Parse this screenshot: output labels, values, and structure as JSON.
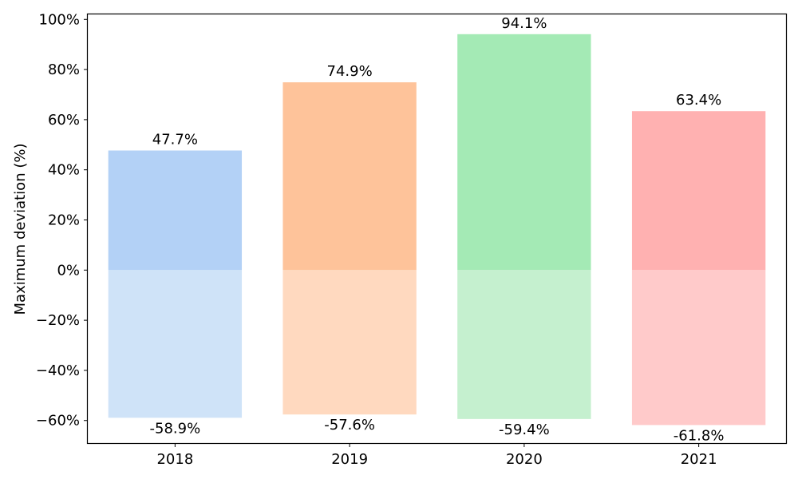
{
  "chart_data": {
    "type": "bar",
    "title": "",
    "xlabel": "",
    "ylabel": "Maximum deviation (%)",
    "categories": [
      "2018",
      "2019",
      "2020",
      "2021"
    ],
    "series": [
      {
        "values": [
          47.7,
          74.9,
          94.1,
          63.4
        ]
      },
      {
        "values": [
          -58.9,
          -57.6,
          -59.4,
          -61.8
        ]
      }
    ],
    "positive_labels": [
      "47.7%",
      "74.9%",
      "94.1%",
      "63.4%"
    ],
    "negative_labels": [
      "-58.9%",
      "-57.6%",
      "-59.4%",
      "-61.8%"
    ],
    "ylim": [
      -69,
      102
    ],
    "yticks": [
      -60,
      -40,
      -20,
      0,
      20,
      40,
      60,
      80,
      100
    ],
    "ytick_labels": [
      "−60%",
      "−40%",
      "−20%",
      "0%",
      "20%",
      "40%",
      "60%",
      "80%",
      "100%"
    ],
    "grid": false,
    "stacked": true,
    "colors": {
      "positive": [
        "#b3d1f6",
        "#fec39a",
        "#a4eab5",
        "#ffb1b1"
      ],
      "negative": [
        "#cfe3f8",
        "#ffd9bf",
        "#c5f0cf",
        "#ffcaca"
      ]
    }
  }
}
